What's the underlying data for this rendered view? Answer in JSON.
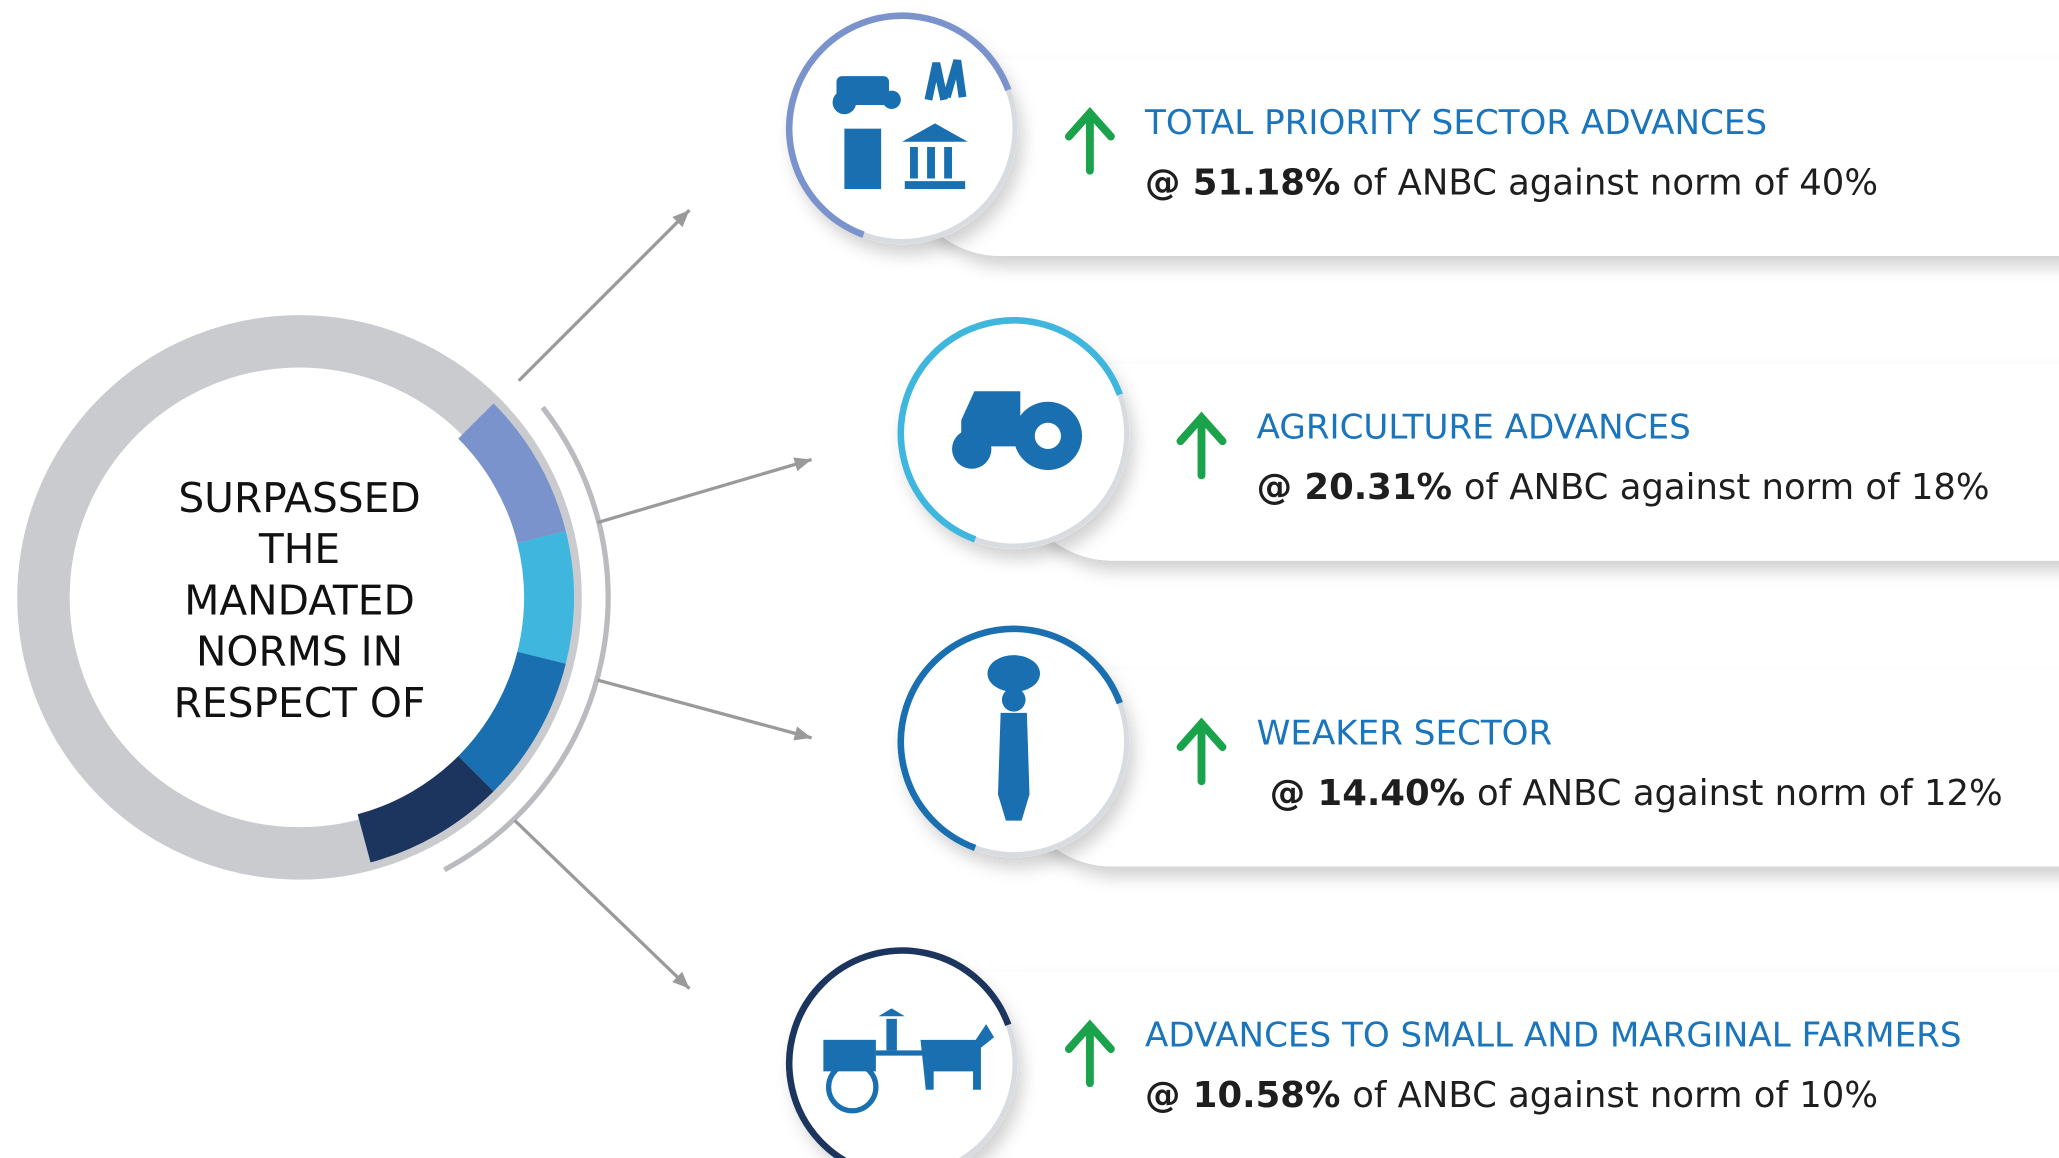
{
  "center": {
    "lines": [
      "SURPASSED",
      "THE",
      "MANDATED",
      "NORMS IN",
      "RESPECT OF"
    ]
  },
  "items": [
    {
      "title": "TOTAL PRIORITY SECTOR ADVANCES",
      "value": "@ 51.18%",
      "rest": "of ANBC against norm of 40%"
    },
    {
      "title": "AGRICULTURE ADVANCES",
      "value": "@ 20.31%",
      "rest": "of ANBC against norm of 18%"
    },
    {
      "title": "WEAKER SECTOR",
      "value": "@ 14.40%",
      "rest": "of ANBC against norm of 12%"
    },
    {
      "title": "ADVANCES TO SMALL AND MARGINAL FARMERS",
      "value": "@ 10.58%",
      "rest": "of ANBC against norm of 10%"
    }
  ]
}
